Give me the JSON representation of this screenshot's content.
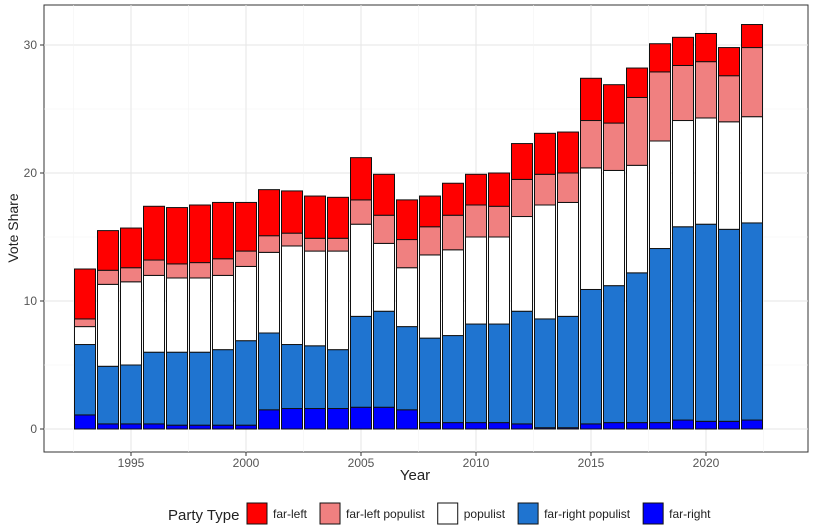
{
  "chart_data": {
    "type": "bar",
    "stacked": true,
    "title": "",
    "xlabel": "Year",
    "ylabel": "Vote Share",
    "ylim": [
      0,
      32
    ],
    "yticks": [
      0,
      10,
      20,
      30
    ],
    "xticks": [
      1995,
      2000,
      2005,
      2010,
      2015,
      2020
    ],
    "grid": true,
    "legend": {
      "title": "Party Type",
      "placement": "bottom"
    },
    "categories": [
      1993,
      1994,
      1995,
      1996,
      1997,
      1998,
      1999,
      2000,
      2001,
      2002,
      2003,
      2004,
      2005,
      2006,
      2007,
      2008,
      2009,
      2010,
      2011,
      2012,
      2013,
      2014,
      2015,
      2016,
      2017,
      2018,
      2019,
      2020,
      2021,
      2022
    ],
    "series": [
      {
        "name": "far-right",
        "color": "#0000ff",
        "values": [
          1.1,
          0.4,
          0.4,
          0.4,
          0.3,
          0.3,
          0.3,
          0.3,
          1.5,
          1.6,
          1.6,
          1.6,
          1.7,
          1.7,
          1.5,
          0.5,
          0.5,
          0.5,
          0.5,
          0.4,
          0.1,
          0.1,
          0.4,
          0.5,
          0.5,
          0.5,
          0.7,
          0.6,
          0.6,
          0.7
        ]
      },
      {
        "name": "far-right populist",
        "color": "#1f74d0",
        "values": [
          5.5,
          4.5,
          4.6,
          5.6,
          5.7,
          5.7,
          5.9,
          6.6,
          6.0,
          5.0,
          4.9,
          4.6,
          7.1,
          7.5,
          6.5,
          6.6,
          6.8,
          7.7,
          7.7,
          8.8,
          8.5,
          8.7,
          10.5,
          10.7,
          11.7,
          13.6,
          15.1,
          15.4,
          15.0,
          15.4
        ]
      },
      {
        "name": "populist",
        "color": "#ffffff",
        "values": [
          1.4,
          6.4,
          6.5,
          6.0,
          5.8,
          5.8,
          5.8,
          5.8,
          6.3,
          7.7,
          7.4,
          7.7,
          7.2,
          5.3,
          4.6,
          6.5,
          6.7,
          6.8,
          6.8,
          7.4,
          8.9,
          8.9,
          9.5,
          9.0,
          8.4,
          8.4,
          8.3,
          8.3,
          8.4,
          8.3
        ]
      },
      {
        "name": "far-left populist",
        "color": "#f08080",
        "values": [
          0.6,
          1.1,
          1.1,
          1.2,
          1.1,
          1.2,
          1.3,
          1.2,
          1.3,
          1.0,
          1.0,
          1.0,
          1.9,
          2.2,
          2.2,
          2.2,
          2.7,
          2.5,
          2.4,
          2.9,
          2.4,
          2.3,
          3.7,
          3.7,
          5.3,
          5.4,
          4.3,
          4.4,
          3.6,
          5.4
        ]
      },
      {
        "name": "far-left",
        "color": "#ff0000",
        "values": [
          3.9,
          3.1,
          3.1,
          4.2,
          4.4,
          4.5,
          4.4,
          3.8,
          3.6,
          3.3,
          3.3,
          3.2,
          3.3,
          3.2,
          3.1,
          2.4,
          2.5,
          2.4,
          2.6,
          2.8,
          3.2,
          3.2,
          3.3,
          3.0,
          2.3,
          2.2,
          2.2,
          2.2,
          2.2,
          1.8
        ]
      }
    ],
    "legend_order": [
      "far-left",
      "far-left populist",
      "populist",
      "far-right populist",
      "far-right"
    ]
  }
}
